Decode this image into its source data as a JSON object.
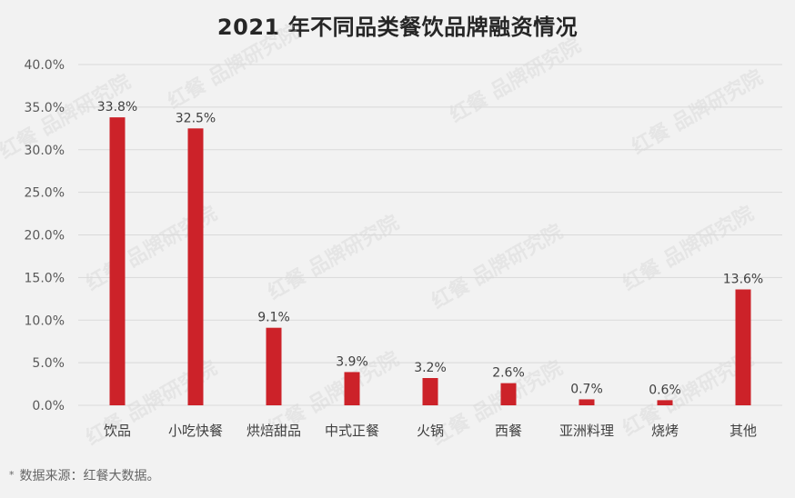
{
  "chart_data": {
    "type": "bar",
    "title": "2021 年不同品类餐饮品牌融资情况",
    "categories": [
      "饮品",
      "小吃快餐",
      "烘焙甜品",
      "中式正餐",
      "火锅",
      "西餐",
      "亚洲料理",
      "烧烤",
      "其他"
    ],
    "values": [
      33.8,
      32.5,
      9.1,
      3.9,
      3.2,
      2.6,
      0.7,
      0.6,
      13.6
    ],
    "value_labels": [
      "33.8%",
      "32.5%",
      "9.1%",
      "3.9%",
      "3.2%",
      "2.6%",
      "0.7%",
      "0.6%",
      "13.6%"
    ],
    "y_ticks": [
      0,
      5,
      10,
      15,
      20,
      25,
      30,
      35,
      40
    ],
    "y_tick_labels": [
      "0.0%",
      "5.0%",
      "10.0%",
      "15.0%",
      "20.0%",
      "25.0%",
      "30.0%",
      "35.0%",
      "40.0%"
    ],
    "ylim": [
      0,
      40
    ],
    "grid": true,
    "bar_color": "#cc2229",
    "grid_color": "#d9d9d9"
  },
  "source_note": {
    "marker": "*",
    "text": "数据来源：红餐大数据。"
  },
  "watermark": {
    "text": "红餐 品牌研究院"
  }
}
